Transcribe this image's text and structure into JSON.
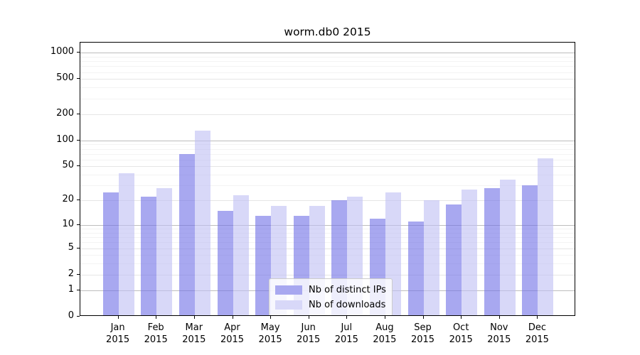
{
  "chart_data": {
    "type": "bar",
    "title": "worm.db0 2015",
    "categories": [
      "Jan 2015",
      "Feb 2015",
      "Mar 2015",
      "Apr 2015",
      "May 2015",
      "Jun 2015",
      "Jul 2015",
      "Aug 2015",
      "Sep 2015",
      "Oct 2015",
      "Nov 2015",
      "Dec 2015"
    ],
    "series": [
      {
        "name": "Nb of distinct IPs",
        "values": [
          25,
          22,
          70,
          15,
          13,
          13,
          20,
          12,
          11,
          18,
          28,
          30
        ],
        "color_hex": "#a8a8f0",
        "fill_rgba": "rgba(110,110,230,0.6)"
      },
      {
        "name": "Nb of downloads",
        "values": [
          42,
          28,
          128,
          23,
          17,
          17,
          22,
          25,
          20,
          27,
          35,
          62
        ],
        "color_hex": "#d8d8f8",
        "fill_rgba": "rgba(190,190,243,0.6)"
      }
    ],
    "yticks": [
      0,
      1,
      2,
      5,
      10,
      20,
      50,
      100,
      200,
      500,
      1000
    ],
    "ylim": [
      0,
      1300
    ],
    "yscale": "log1p",
    "xlabel": "",
    "ylabel": "",
    "grid": "on",
    "grid_major_color": "#bdbdbd",
    "grid_mid_color": "#e5e5e5",
    "grid_minor_color": "#f3f3f3",
    "axis_color": "#000000",
    "legend_position": "lower center-left inside plot"
  }
}
